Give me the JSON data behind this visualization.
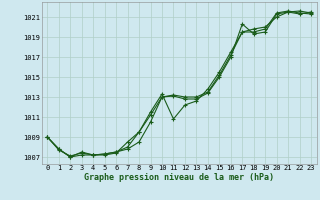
{
  "xlabel": "Graphe pression niveau de la mer (hPa)",
  "background_color": "#cfe8ef",
  "grid_color": "#b0cfc8",
  "line_color": "#1a5c1a",
  "hours": [
    0,
    1,
    2,
    3,
    4,
    5,
    6,
    7,
    8,
    9,
    10,
    11,
    12,
    13,
    14,
    15,
    16,
    17,
    18,
    19,
    20,
    21,
    22,
    23
  ],
  "series1": [
    1009.0,
    1007.8,
    1007.0,
    1007.2,
    1007.2,
    1007.2,
    1007.4,
    1008.5,
    1009.5,
    1011.2,
    1013.0,
    1013.1,
    1012.8,
    1012.8,
    1013.4,
    1015.0,
    1017.0,
    1020.3,
    1019.3,
    1019.5,
    1021.3,
    1021.5,
    1021.3,
    1021.5
  ],
  "series2": [
    1009.0,
    1007.8,
    1007.0,
    1007.5,
    1007.2,
    1007.3,
    1007.5,
    1007.8,
    1008.5,
    1010.5,
    1013.0,
    1013.2,
    1013.0,
    1013.0,
    1013.5,
    1015.2,
    1017.2,
    1019.5,
    1019.5,
    1019.8,
    1021.4,
    1021.6,
    1021.4,
    1021.3
  ],
  "series3": [
    1009.0,
    1007.7,
    1007.1,
    1007.4,
    1007.2,
    1007.3,
    1007.5,
    1008.0,
    1009.5,
    1011.5,
    1013.3,
    1010.8,
    1012.2,
    1012.6,
    1013.8,
    1015.5,
    1017.5,
    1019.5,
    1019.8,
    1020.0,
    1021.0,
    1021.5,
    1021.6,
    1021.4
  ],
  "yticks": [
    1007,
    1009,
    1011,
    1013,
    1015,
    1017,
    1019,
    1021
  ],
  "ylim": [
    1006.3,
    1022.5
  ],
  "xlim": [
    -0.5,
    23.5
  ]
}
